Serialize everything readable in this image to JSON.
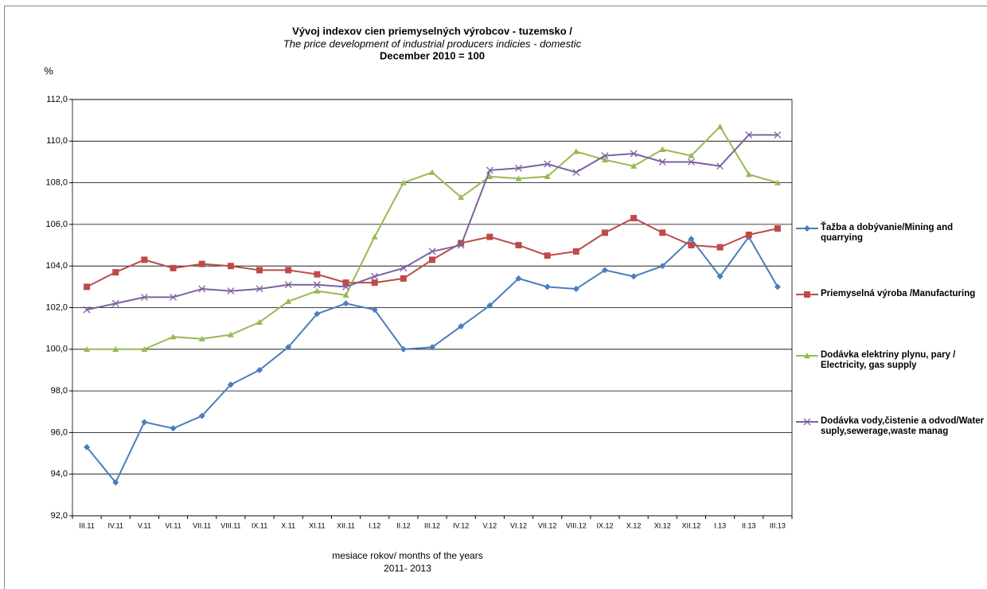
{
  "chart_data": {
    "type": "line",
    "title": "Vývoj indexov cien priemyselných výrobcov - tuzemsko /",
    "subtitle": "The price development of industrial producers indicies - domestic",
    "subtitle2": "December 2010 = 100",
    "y_label": "%",
    "x_label": "mesiace rokov/ months of the years",
    "x_label2": "2011- 2013",
    "categories": [
      "III.11",
      "IV.11",
      "V.11",
      "VI.11",
      "VII.11",
      "VIII.11",
      "IX.11",
      "X.11",
      "XI.11",
      "XII.11",
      "I.12",
      "II.12",
      "III.12",
      "IV.12",
      "V.12",
      "VI.12",
      "VII.12",
      "VIII.12",
      "IX.12",
      "X.12",
      "XI.12",
      "XII.12",
      "I.13",
      "II.13",
      "III.13"
    ],
    "series": [
      {
        "name": "Ťažba a dobývanie/Mining and quarrying",
        "color": "#4a7ebb",
        "marker": "diamond",
        "values": [
          95.3,
          93.6,
          96.5,
          96.2,
          96.8,
          98.3,
          99.0,
          100.1,
          101.7,
          102.2,
          101.9,
          100.0,
          100.1,
          101.1,
          102.1,
          103.4,
          103.0,
          102.9,
          103.8,
          103.5,
          104.0,
          105.3,
          103.5,
          105.4,
          103.0
        ]
      },
      {
        "name": "Priemyselná výroba /Manufacturing",
        "color": "#be4b48",
        "marker": "square",
        "values": [
          103.0,
          103.7,
          104.3,
          103.9,
          104.1,
          104.0,
          103.8,
          103.8,
          103.6,
          103.2,
          103.2,
          103.4,
          104.3,
          105.1,
          105.4,
          105.0,
          104.5,
          104.7,
          105.6,
          106.3,
          105.6,
          105.0,
          104.9,
          105.5,
          105.8
        ]
      },
      {
        "name": "Dodávka elektriny plynu, pary / Electricity, gas supply",
        "color": "#98b954",
        "marker": "triangle",
        "values": [
          100.0,
          100.0,
          100.0,
          100.6,
          100.5,
          100.7,
          101.3,
          102.3,
          102.8,
          102.6,
          105.4,
          108.0,
          108.5,
          107.3,
          108.3,
          108.2,
          108.3,
          109.5,
          109.1,
          108.8,
          109.6,
          109.3,
          110.7,
          108.4,
          108.0
        ]
      },
      {
        "name": "Dodávka vody,čistenie a odvod/Water suply,sewerage,waste manag",
        "color": "#7d60a0",
        "marker": "x",
        "values": [
          101.9,
          102.2,
          102.5,
          102.5,
          102.9,
          102.8,
          102.9,
          103.1,
          103.1,
          103.0,
          103.5,
          103.9,
          104.7,
          105.0,
          108.6,
          108.7,
          108.9,
          108.5,
          109.3,
          109.4,
          109.0,
          109.0,
          108.8,
          110.3,
          110.3
        ]
      }
    ],
    "ylim": [
      92,
      112
    ],
    "yticks": [
      {
        "value": 92,
        "label": "92,0"
      },
      {
        "value": 94,
        "label": "94,0"
      },
      {
        "value": 96,
        "label": "96,0"
      },
      {
        "value": 98,
        "label": "98,0"
      },
      {
        "value": 100,
        "label": "100,0"
      },
      {
        "value": 102,
        "label": "102,0"
      },
      {
        "value": 104,
        "label": "104,0"
      },
      {
        "value": 106,
        "label": "106,0"
      },
      {
        "value": 108,
        "label": "108,0"
      },
      {
        "value": 110,
        "label": "110,0"
      },
      {
        "value": 112,
        "label": "112,0"
      }
    ],
    "grid": true,
    "legend": "right"
  }
}
